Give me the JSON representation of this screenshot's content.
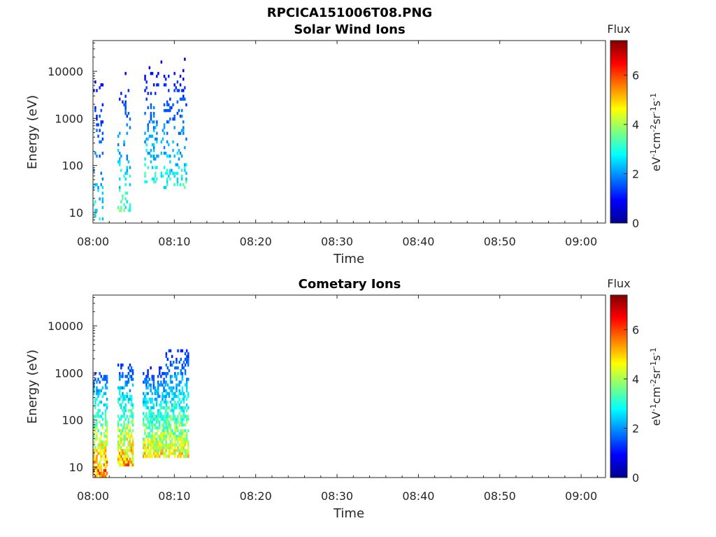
{
  "figure": {
    "suptitle": "RPCICA151006T08.PNG"
  },
  "chart_data": [
    {
      "type": "heatmap",
      "title": "Solar Wind Ions",
      "xlabel": "Time",
      "ylabel": "Energy (eV)",
      "y_scale": "log",
      "x_range": [
        "08:00",
        "09:03"
      ],
      "ylim": [
        6,
        45000
      ],
      "x_ticks": [
        "08:00",
        "08:10",
        "08:20",
        "08:30",
        "08:40",
        "08:50",
        "09:00"
      ],
      "y_ticks": [
        "10",
        "100",
        "1000",
        "10000"
      ],
      "colorbar": {
        "label": "Flux",
        "unit_label": "eV-1cm-2sr-1s-1",
        "range": [
          0,
          7.4
        ],
        "ticks": [
          "0",
          "2",
          "4",
          "6"
        ],
        "colormap": "jet"
      },
      "data_coverage": [
        "08:00",
        "08:11.5"
      ],
      "bursts": [
        {
          "t_start": 0.0,
          "t_end": 1.2,
          "e_low": 6,
          "e_high": 9000,
          "flux_peak": 3.0,
          "density": 0.25
        },
        {
          "t_start": 3.0,
          "t_end": 4.6,
          "e_low": 10,
          "e_high": 8500,
          "flux_peak": 3.5,
          "density": 0.22
        },
        {
          "t_start": 6.3,
          "t_end": 8.0,
          "e_low": 40,
          "e_high": 12000,
          "flux_peak": 3.2,
          "density": 0.28
        },
        {
          "t_start": 8.3,
          "t_end": 11.5,
          "e_low": 30,
          "e_high": 17000,
          "flux_peak": 3.1,
          "density": 0.22
        }
      ]
    },
    {
      "type": "heatmap",
      "title": "Cometary Ions",
      "xlabel": "Time",
      "ylabel": "Energy (eV)",
      "y_scale": "log",
      "x_range": [
        "08:00",
        "09:03"
      ],
      "ylim": [
        6,
        45000
      ],
      "x_ticks": [
        "08:00",
        "08:10",
        "08:20",
        "08:30",
        "08:40",
        "08:50",
        "09:00"
      ],
      "y_ticks": [
        "10",
        "100",
        "1000",
        "10000"
      ],
      "colorbar": {
        "label": "Flux",
        "unit_label": "eV-1cm-2sr-1s-1",
        "range": [
          0,
          7.4
        ],
        "ticks": [
          "0",
          "2",
          "4",
          "6"
        ],
        "colormap": "jet"
      },
      "data_coverage": [
        "08:00",
        "08:11.5"
      ],
      "bursts": [
        {
          "t_start": 0.0,
          "t_end": 1.7,
          "e_low": 6,
          "e_high": 1000,
          "flux_peak": 5.8,
          "density": 0.8
        },
        {
          "t_start": 3.0,
          "t_end": 4.9,
          "e_low": 10,
          "e_high": 1400,
          "flux_peak": 5.5,
          "density": 0.8
        },
        {
          "t_start": 6.1,
          "t_end": 8.8,
          "e_low": 15,
          "e_high": 1200,
          "flux_peak": 5.0,
          "density": 0.85
        },
        {
          "t_start": 8.9,
          "t_end": 11.6,
          "e_low": 15,
          "e_high": 3000,
          "flux_peak": 4.8,
          "density": 0.8
        }
      ]
    }
  ]
}
